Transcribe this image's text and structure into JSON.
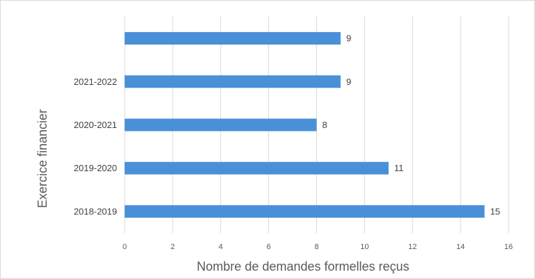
{
  "chart_data": {
    "type": "bar",
    "orientation": "horizontal",
    "categories": [
      "2018-2019",
      "2019-2020",
      "2020-2021",
      "2021-2022",
      ""
    ],
    "values": [
      15,
      11,
      8,
      9,
      9
    ],
    "xlabel": "Nombre de demandes formelles reçus",
    "ylabel": "Exercice financier",
    "xlim": [
      0,
      16
    ],
    "xticks": [
      0,
      2,
      4,
      6,
      8,
      10,
      12,
      14,
      16
    ],
    "grid": true,
    "data_labels": true,
    "bar_color": "#4a90d9",
    "grid_color": "#d9d9d9"
  }
}
